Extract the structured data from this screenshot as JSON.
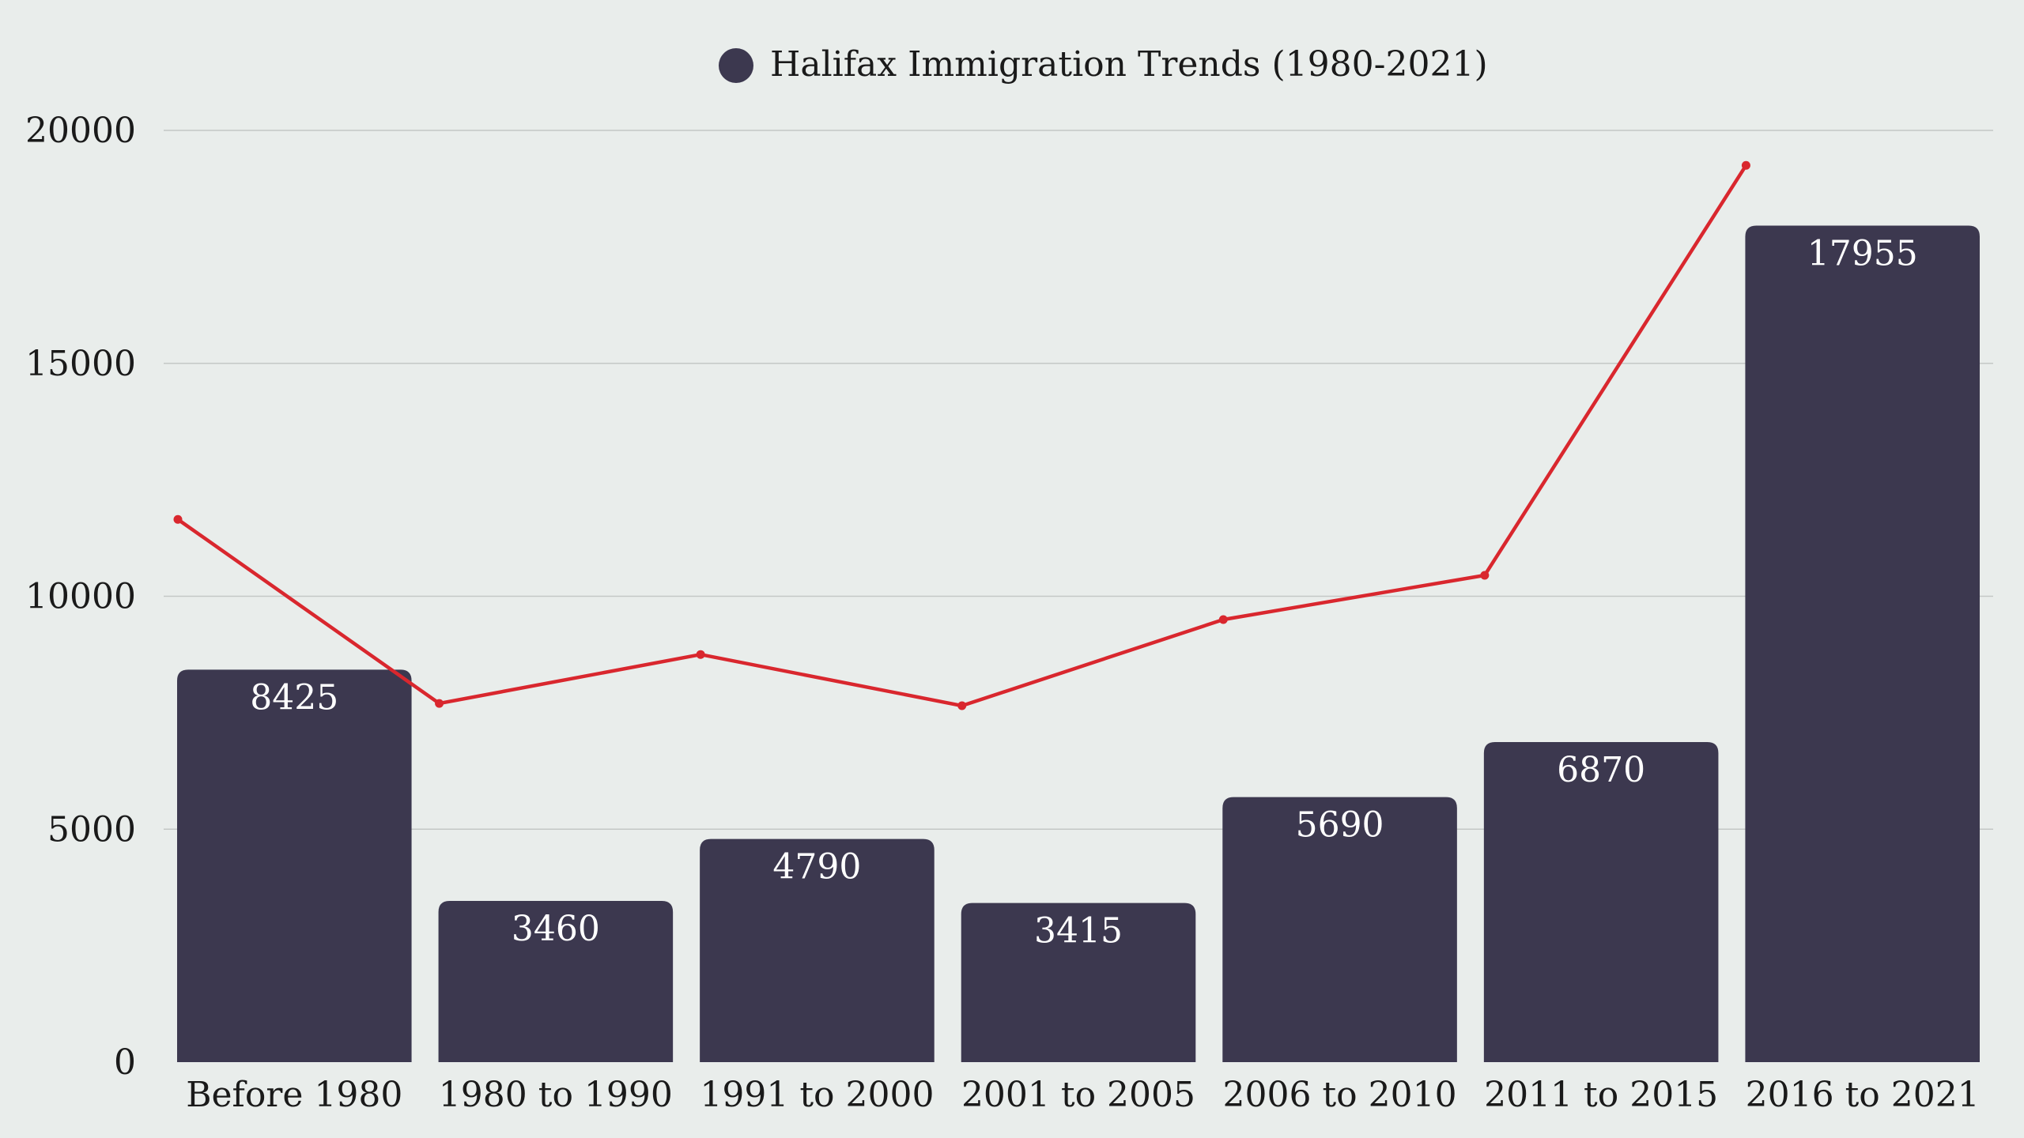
{
  "chart_data": {
    "type": "bar",
    "title": "",
    "xlabel": "",
    "ylabel": "",
    "categories": [
      "Before 1980",
      "1980 to 1990",
      "1991 to 2000",
      "2001 to 2005",
      "2006 to 2010",
      "2011 to 2015",
      "2016 to 2021"
    ],
    "series": [
      {
        "name": "Halifax Immigration Trends (1980-2021)",
        "type": "bar",
        "values": [
          8425,
          3460,
          4790,
          3415,
          5690,
          6870,
          17955
        ],
        "data_labels": [
          "8425",
          "3460",
          "4790",
          "3415",
          "5690",
          "6870",
          "17955"
        ]
      },
      {
        "type": "line",
        "values": [
          11650,
          7700,
          8750,
          7650,
          9500,
          10450,
          19250
        ]
      }
    ],
    "ylim": [
      0,
      20000
    ],
    "yticks": [
      "0",
      "5000",
      "10000",
      "15000",
      "20000"
    ],
    "grid": true,
    "legend": "top-center",
    "colors": {
      "bar": "#3c384f",
      "line": "#d9272e",
      "grid": "#c4c8c6",
      "background": "#e9edeb"
    }
  }
}
